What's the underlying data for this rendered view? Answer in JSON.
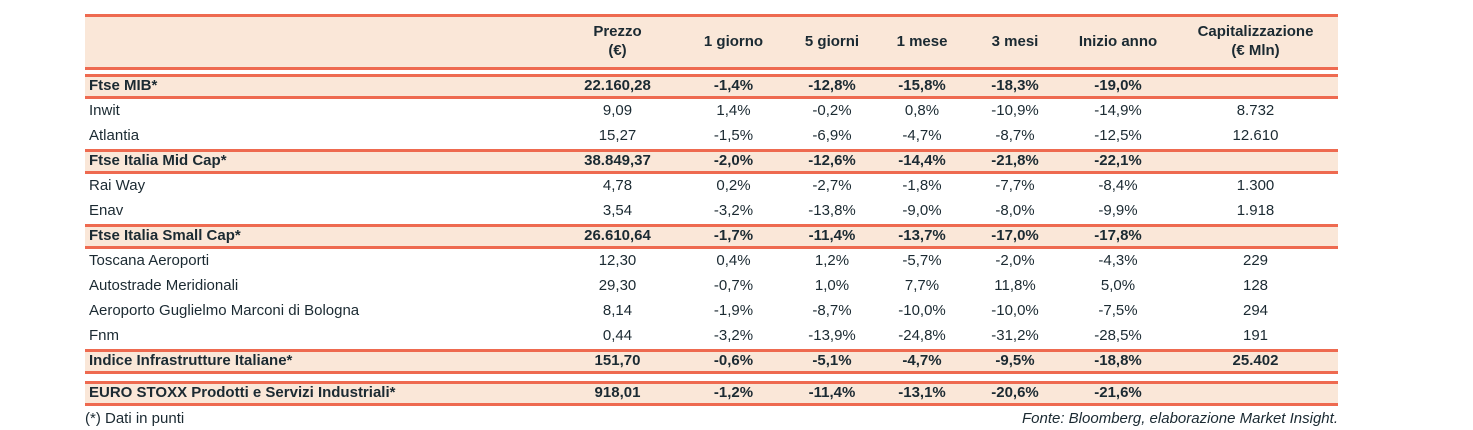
{
  "colors": {
    "line": "#EE6A50",
    "row_highlight": "#FAE7D8",
    "text": "#1B2A32"
  },
  "table": {
    "headers": [
      {
        "key": "name",
        "label": ""
      },
      {
        "key": "prezzo",
        "label": "Prezzo\n(€)"
      },
      {
        "key": "d1",
        "label": "1 giorno"
      },
      {
        "key": "d5",
        "label": "5 giorni"
      },
      {
        "key": "m1",
        "label": "1 mese"
      },
      {
        "key": "m3",
        "label": "3 mesi"
      },
      {
        "key": "ytd",
        "label": "Inizio anno"
      },
      {
        "key": "cap",
        "label": "Capitalizzazione\n(€ Mln)"
      }
    ],
    "rows": [
      {
        "type": "index",
        "name": "Ftse MIB*",
        "prezzo": "22.160,28",
        "d1": "-1,4%",
        "d5": "-12,8%",
        "m1": "-15,8%",
        "m3": "-18,3%",
        "ytd": "-19,0%",
        "cap": ""
      },
      {
        "type": "stock",
        "name": "Inwit",
        "prezzo": "9,09",
        "d1": "1,4%",
        "d5": "-0,2%",
        "m1": "0,8%",
        "m3": "-10,9%",
        "ytd": "-14,9%",
        "cap": "8.732"
      },
      {
        "type": "stock",
        "name": "Atlantia",
        "prezzo": "15,27",
        "d1": "-1,5%",
        "d5": "-6,9%",
        "m1": "-4,7%",
        "m3": "-8,7%",
        "ytd": "-12,5%",
        "cap": "12.610"
      },
      {
        "type": "index",
        "name": "Ftse Italia Mid Cap*",
        "prezzo": "38.849,37",
        "d1": "-2,0%",
        "d5": "-12,6%",
        "m1": "-14,4%",
        "m3": "-21,8%",
        "ytd": "-22,1%",
        "cap": ""
      },
      {
        "type": "stock",
        "name": "Rai Way",
        "prezzo": "4,78",
        "d1": "0,2%",
        "d5": "-2,7%",
        "m1": "-1,8%",
        "m3": "-7,7%",
        "ytd": "-8,4%",
        "cap": "1.300"
      },
      {
        "type": "stock",
        "name": "Enav",
        "prezzo": "3,54",
        "d1": "-3,2%",
        "d5": "-13,8%",
        "m1": "-9,0%",
        "m3": "-8,0%",
        "ytd": "-9,9%",
        "cap": "1.918"
      },
      {
        "type": "index",
        "name": "Ftse Italia Small Cap*",
        "prezzo": "26.610,64",
        "d1": "-1,7%",
        "d5": "-11,4%",
        "m1": "-13,7%",
        "m3": "-17,0%",
        "ytd": "-17,8%",
        "cap": ""
      },
      {
        "type": "stock",
        "name": "Toscana Aeroporti",
        "prezzo": "12,30",
        "d1": "0,4%",
        "d5": "1,2%",
        "m1": "-5,7%",
        "m3": "-2,0%",
        "ytd": "-4,3%",
        "cap": "229"
      },
      {
        "type": "stock",
        "name": "Autostrade Meridionali",
        "prezzo": "29,30",
        "d1": "-0,7%",
        "d5": "1,0%",
        "m1": "7,7%",
        "m3": "11,8%",
        "ytd": "5,0%",
        "cap": "128"
      },
      {
        "type": "stock",
        "name": "Aeroporto Guglielmo Marconi di Bologna",
        "prezzo": "8,14",
        "d1": "-1,9%",
        "d5": "-8,7%",
        "m1": "-10,0%",
        "m3": "-10,0%",
        "ytd": "-7,5%",
        "cap": "294"
      },
      {
        "type": "stock",
        "name": "Fnm",
        "prezzo": "0,44",
        "d1": "-3,2%",
        "d5": "-13,9%",
        "m1": "-24,8%",
        "m3": "-31,2%",
        "ytd": "-28,5%",
        "cap": "191"
      },
      {
        "type": "index",
        "name": "Indice Infrastrutture Italiane*",
        "prezzo": "151,70",
        "d1": "-0,6%",
        "d5": "-5,1%",
        "m1": "-4,7%",
        "m3": "-9,5%",
        "ytd": "-18,8%",
        "cap": "25.402"
      },
      {
        "type": "index",
        "gap_before": true,
        "name": "EURO STOXX Prodotti e Servizi Industriali*",
        "prezzo": "918,01",
        "d1": "-1,2%",
        "d5": "-11,4%",
        "m1": "-13,1%",
        "m3": "-20,6%",
        "ytd": "-21,6%",
        "cap": ""
      }
    ]
  },
  "footer": {
    "footnote": "(*) Dati in punti",
    "source": "Fonte: Bloomberg, elaborazione Market Insight."
  }
}
